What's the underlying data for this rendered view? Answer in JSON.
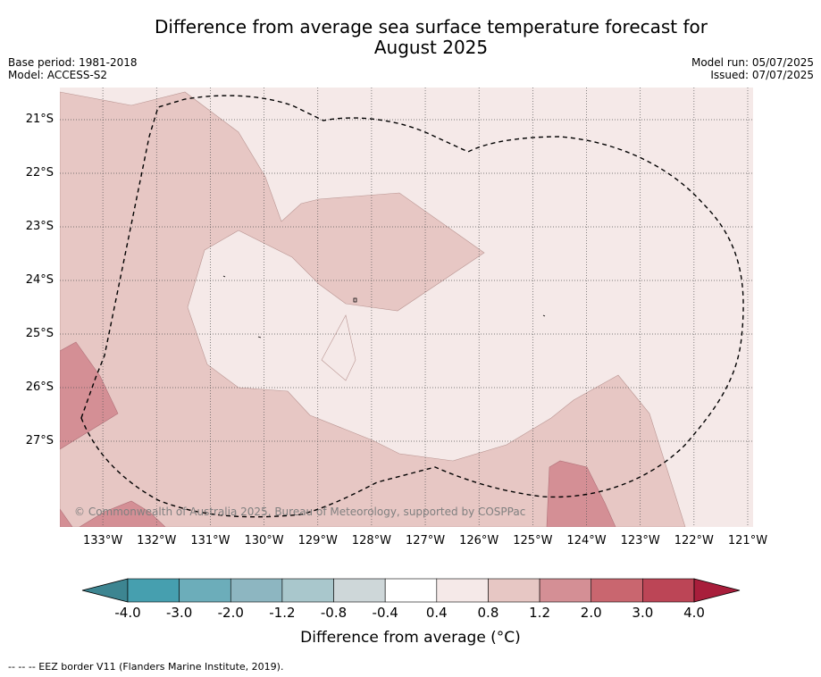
{
  "title_line1": "Difference from average sea surface temperature forecast for",
  "title_line2": "August 2025",
  "meta_left": {
    "base_period": "Base period: 1981-2018",
    "model": "Model: ACCESS-S2"
  },
  "meta_right": {
    "model_run": "Model run: 05/07/2025",
    "issued": "Issued: 07/07/2025"
  },
  "map": {
    "lon_range": [
      -133.8,
      -120.9
    ],
    "lat_range": [
      -20.4,
      -28.6
    ],
    "lat_ticks": [
      {
        "value": -21,
        "label": "21°S"
      },
      {
        "value": -22,
        "label": "22°S"
      },
      {
        "value": -23,
        "label": "23°S"
      },
      {
        "value": -24,
        "label": "24°S"
      },
      {
        "value": -25,
        "label": "25°S"
      },
      {
        "value": -26,
        "label": "26°S"
      },
      {
        "value": -27,
        "label": "27°S"
      }
    ],
    "lon_ticks": [
      {
        "value": -133,
        "label": "133°W"
      },
      {
        "value": -132,
        "label": "132°W"
      },
      {
        "value": -131,
        "label": "131°W"
      },
      {
        "value": -130,
        "label": "130°W"
      },
      {
        "value": -129,
        "label": "129°W"
      },
      {
        "value": -128,
        "label": "128°W"
      },
      {
        "value": -127,
        "label": "127°W"
      },
      {
        "value": -126,
        "label": "126°W"
      },
      {
        "value": -125,
        "label": "125°W"
      },
      {
        "value": -124,
        "label": "124°W"
      },
      {
        "value": -123,
        "label": "123°W"
      },
      {
        "value": -122,
        "label": "122°W"
      },
      {
        "value": -121,
        "label": "121°W"
      }
    ],
    "colors": {
      "band_0_4_0_8": "#f5e9e8",
      "band_0_8_1_2": "#e7c7c4",
      "band_1_2_2_0": "#d48f95"
    },
    "copyright": "© Commonwealth of Australia 2025, Bureau of Meteorology, supported by COSPPac"
  },
  "colorbar": {
    "boundaries": [
      "-4.0",
      "-3.0",
      "-2.0",
      "-1.2",
      "-0.8",
      "-0.4",
      "0.4",
      "0.8",
      "1.2",
      "2.0",
      "3.0",
      "4.0"
    ],
    "colors": [
      "#469faf",
      "#6cadba",
      "#8db6c1",
      "#a9c7cc",
      "#ced7d9",
      "#ffffff",
      "#f5e9e8",
      "#e7c7c4",
      "#d48f95",
      "#c9666f",
      "#bc4556"
    ],
    "under_color": "#3d8591",
    "over_color": "#a81e3b",
    "label": "Difference from average (°C)"
  },
  "footnote": "--  --  -- EEZ border V11 (Flanders Marine Institute, 2019)."
}
